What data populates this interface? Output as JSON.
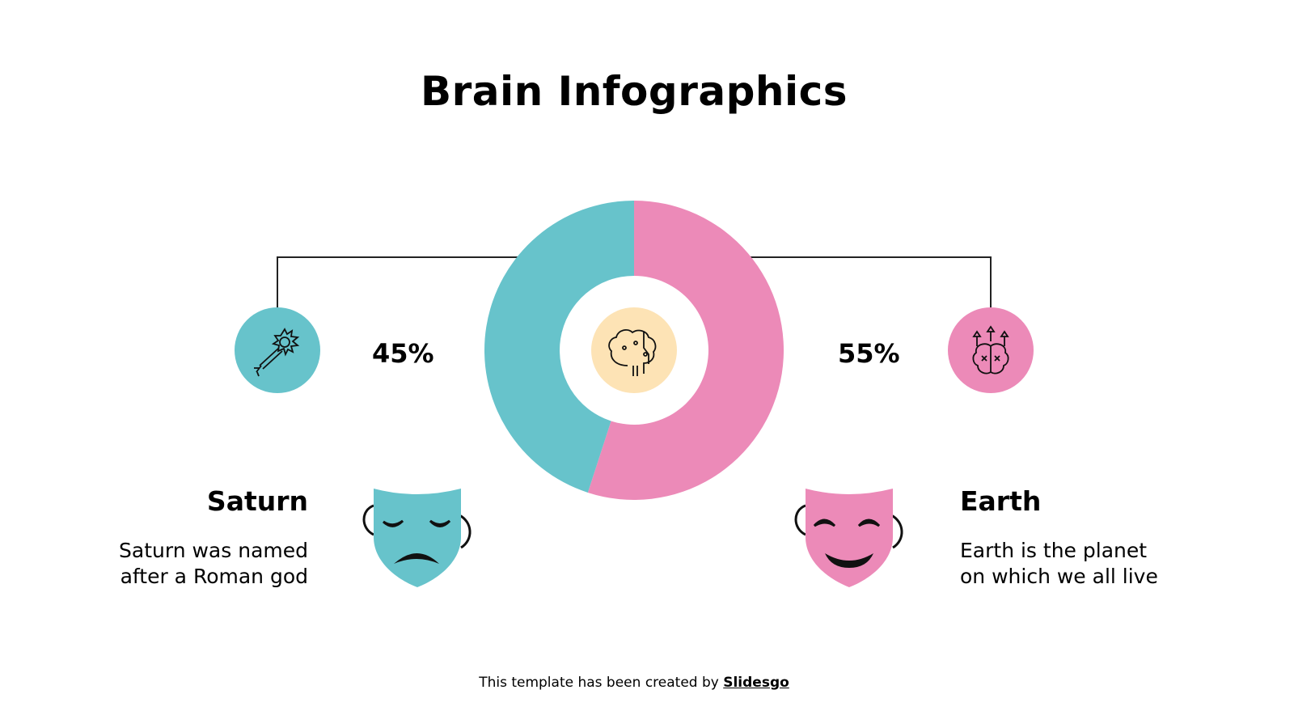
{
  "title": "Brain Infographics",
  "colors": {
    "teal": "#67c3cb",
    "pink": "#ec8ab8",
    "beige": "#fde3b5"
  },
  "chart_data": {
    "type": "pie",
    "donut": true,
    "categories": [
      "Saturn",
      "Earth"
    ],
    "values": [
      45,
      55
    ],
    "labels": [
      "45%",
      "55%"
    ],
    "colors": [
      "#67c3cb",
      "#ec8ab8"
    ]
  },
  "left": {
    "percent": "45%",
    "heading": "Saturn",
    "desc_line1": "Saturn was named",
    "desc_line2": "after a Roman god",
    "icon": "neuron-icon",
    "mask": "tragedy-mask-icon"
  },
  "right": {
    "percent": "55%",
    "heading": "Earth",
    "desc_line1": "Earth is the planet",
    "desc_line2": "on which we all live",
    "icon": "brain-growth-icon",
    "mask": "comedy-mask-icon"
  },
  "center_icon": "brain-circuit-icon",
  "footer": {
    "text": "This template has been created by ",
    "brand": "Slidesgo"
  }
}
